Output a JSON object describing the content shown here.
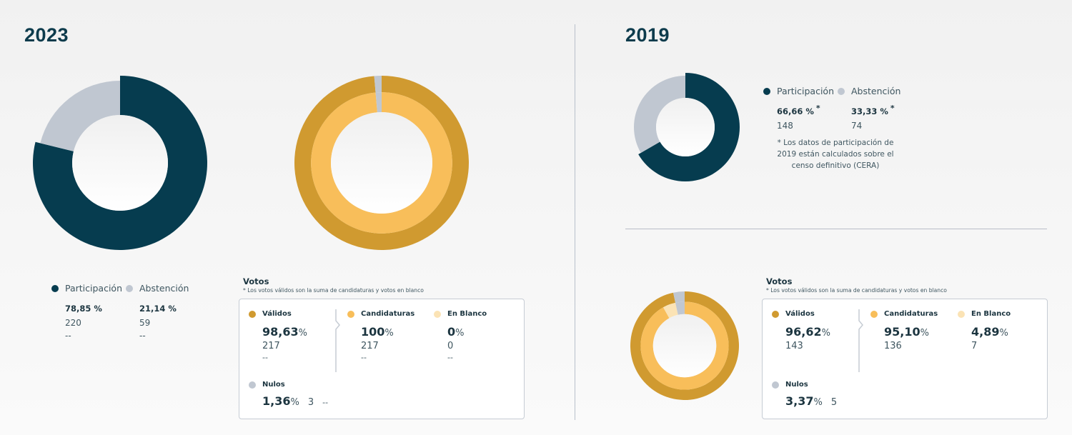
{
  "colors": {
    "participacion": "#063c4f",
    "abstencion": "#c0c7d1",
    "validos": "#d09a30",
    "candidaturas": "#f8be5a",
    "en_blanco": "#fbe3b5",
    "nulos": "#c0c7d1",
    "title": "#0d3b4c"
  },
  "panels": [
    {
      "year": "2023",
      "participation": {
        "items": [
          {
            "label": "Participación",
            "pct": "78,85 %",
            "count": "220",
            "prev": "--",
            "asterisk": ""
          },
          {
            "label": "Abstención",
            "pct": "21,14 %",
            "count": "59",
            "prev": "--",
            "asterisk": ""
          }
        ]
      },
      "votos": {
        "title": "Votos",
        "note": "* Los votos válidos son la suma de candidaturas y votos en blanco",
        "validos": {
          "label": "Válidos",
          "pct": "98,63",
          "unit": "%",
          "count": "217",
          "prev": "--"
        },
        "candidaturas": {
          "label": "Candidaturas",
          "pct": "100",
          "unit": "%",
          "count": "217",
          "prev": "--"
        },
        "en_blanco": {
          "label": "En Blanco",
          "pct": "0",
          "unit": "%",
          "count": "0",
          "prev": "--"
        },
        "nulos": {
          "label": "Nulos",
          "pct": "1,36",
          "unit": "%",
          "count": "3",
          "prev": "--"
        }
      }
    },
    {
      "year": "2019",
      "participation": {
        "items": [
          {
            "label": "Participación",
            "pct": "66,66 %",
            "count": "148",
            "asterisk": "*"
          },
          {
            "label": "Abstención",
            "pct": "33,33 %",
            "count": "74",
            "asterisk": "*"
          }
        ],
        "footnote": "* Los datos de participación de 2019 están calculados sobre el censo definitivo (CERA)"
      },
      "votos": {
        "title": "Votos",
        "note": "* Los votos válidos son la suma de candidaturas y votos en blanco",
        "validos": {
          "label": "Válidos",
          "pct": "96,62",
          "unit": "%",
          "count": "143"
        },
        "candidaturas": {
          "label": "Candidaturas",
          "pct": "95,10",
          "unit": "%",
          "count": "136"
        },
        "en_blanco": {
          "label": "En Blanco",
          "pct": "4,89",
          "unit": "%",
          "count": "7"
        },
        "nulos": {
          "label": "Nulos",
          "pct": "3,37",
          "unit": "%",
          "count": "5"
        }
      }
    }
  ],
  "chart_data": [
    {
      "type": "pie",
      "title": "2023 Participación",
      "variant": "donut",
      "slices": [
        {
          "name": "Participación",
          "value": 78.85
        },
        {
          "name": "Abstención",
          "value": 21.14
        }
      ]
    },
    {
      "type": "pie",
      "title": "2023 Votos",
      "variant": "double-donut",
      "outer": [
        {
          "name": "Válidos",
          "value": 98.63
        },
        {
          "name": "Nulos",
          "value": 1.36
        }
      ],
      "inner": [
        {
          "name": "Candidaturas",
          "value": 100
        },
        {
          "name": "En Blanco",
          "value": 0
        }
      ]
    },
    {
      "type": "pie",
      "title": "2019 Participación",
      "variant": "donut",
      "slices": [
        {
          "name": "Participación",
          "value": 66.66
        },
        {
          "name": "Abstención",
          "value": 33.33
        }
      ]
    },
    {
      "type": "pie",
      "title": "2019 Votos",
      "variant": "double-donut",
      "outer": [
        {
          "name": "Válidos",
          "value": 96.62
        },
        {
          "name": "Nulos",
          "value": 3.37
        }
      ],
      "inner": [
        {
          "name": "Candidaturas",
          "value": 95.1
        },
        {
          "name": "En Blanco",
          "value": 4.89
        }
      ]
    }
  ]
}
